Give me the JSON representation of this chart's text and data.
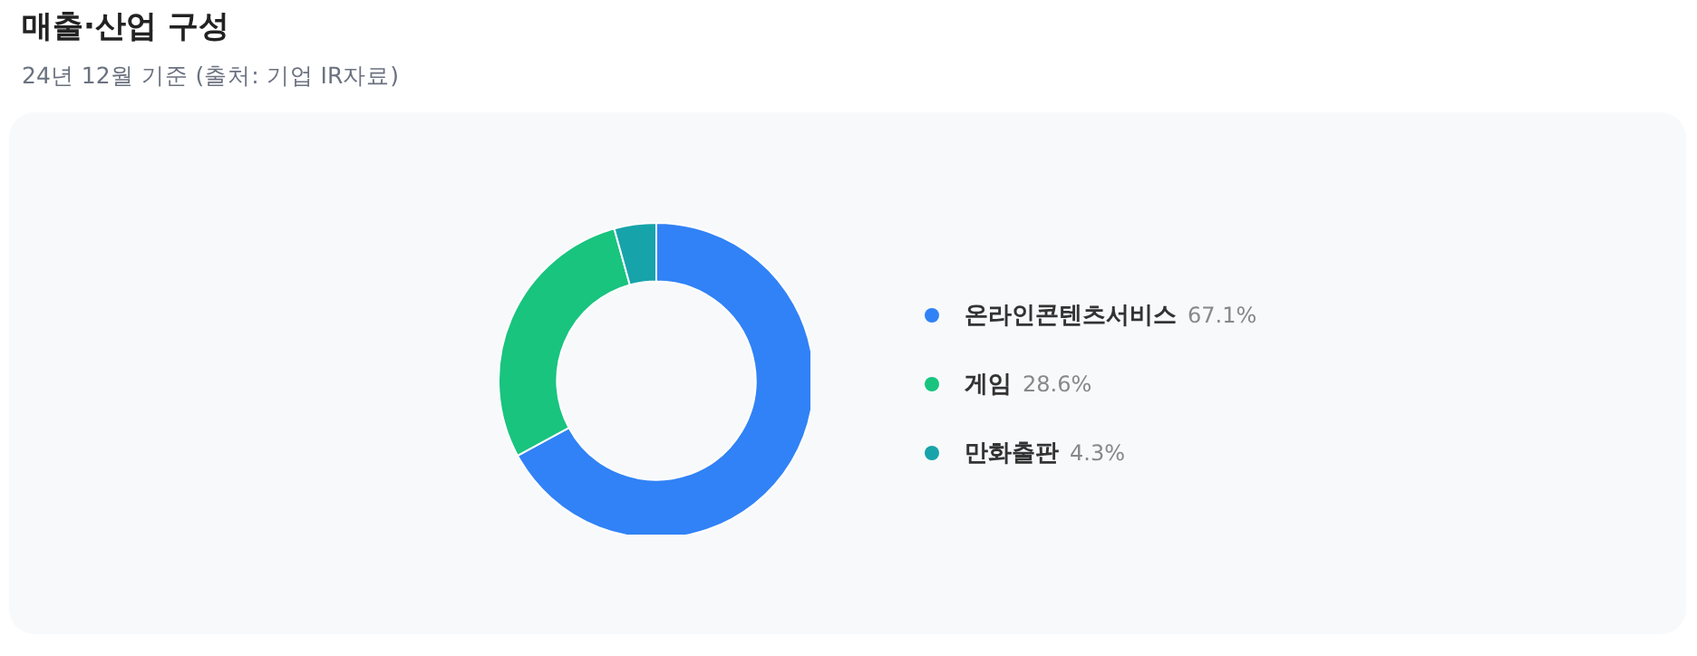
{
  "chart_data": {
    "type": "donut",
    "title": "매출·산업 구성",
    "subtitle": "24년 12월 기준 (출처: 기업 IR자료)",
    "categories": [
      "온라인콘텐츠서비스",
      "게임",
      "만화출판"
    ],
    "values": [
      67.1,
      28.6,
      4.3
    ],
    "value_labels": [
      "67.1%",
      "28.6%",
      "4.3%"
    ],
    "colors": [
      "#3182f6",
      "#18c47e",
      "#17a3aa"
    ],
    "legend": "right"
  }
}
